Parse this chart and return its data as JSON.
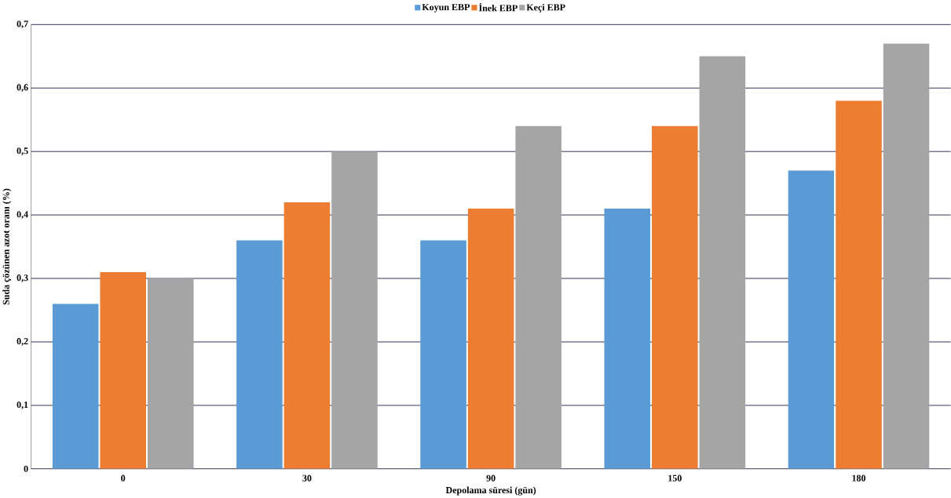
{
  "chart_data": {
    "type": "bar",
    "xlabel": "Depolama süresi (gün)",
    "ylabel": "Suda çözünen azot oranı (%)",
    "categories": [
      "0",
      "30",
      "90",
      "150",
      "180"
    ],
    "series": [
      {
        "name": "Koyun EBP",
        "color": "#5b9bd5",
        "values": [
          0.26,
          0.36,
          0.36,
          0.41,
          0.47
        ]
      },
      {
        "name": "İnek EBP",
        "color": "#ed7d31",
        "values": [
          0.31,
          0.42,
          0.41,
          0.54,
          0.58
        ]
      },
      {
        "name": "Keçi EBP",
        "color": "#a5a5a5",
        "values": [
          0.3,
          0.5,
          0.54,
          0.65,
          0.67
        ]
      }
    ],
    "ylim": [
      0,
      0.7
    ],
    "yticks": [
      0,
      {
        "value": 0.1,
        "label": "0,1"
      },
      {
        "value": 0.2,
        "label": "0,2"
      },
      {
        "value": 0.3,
        "label": "0,3"
      },
      {
        "value": 0.4,
        "label": "0,4"
      },
      {
        "value": 0.5,
        "label": "0,5"
      },
      {
        "value": 0.6,
        "label": "0,6"
      },
      {
        "value": 0.7,
        "label": "0,7"
      }
    ],
    "grid": "y",
    "legend": "top"
  }
}
